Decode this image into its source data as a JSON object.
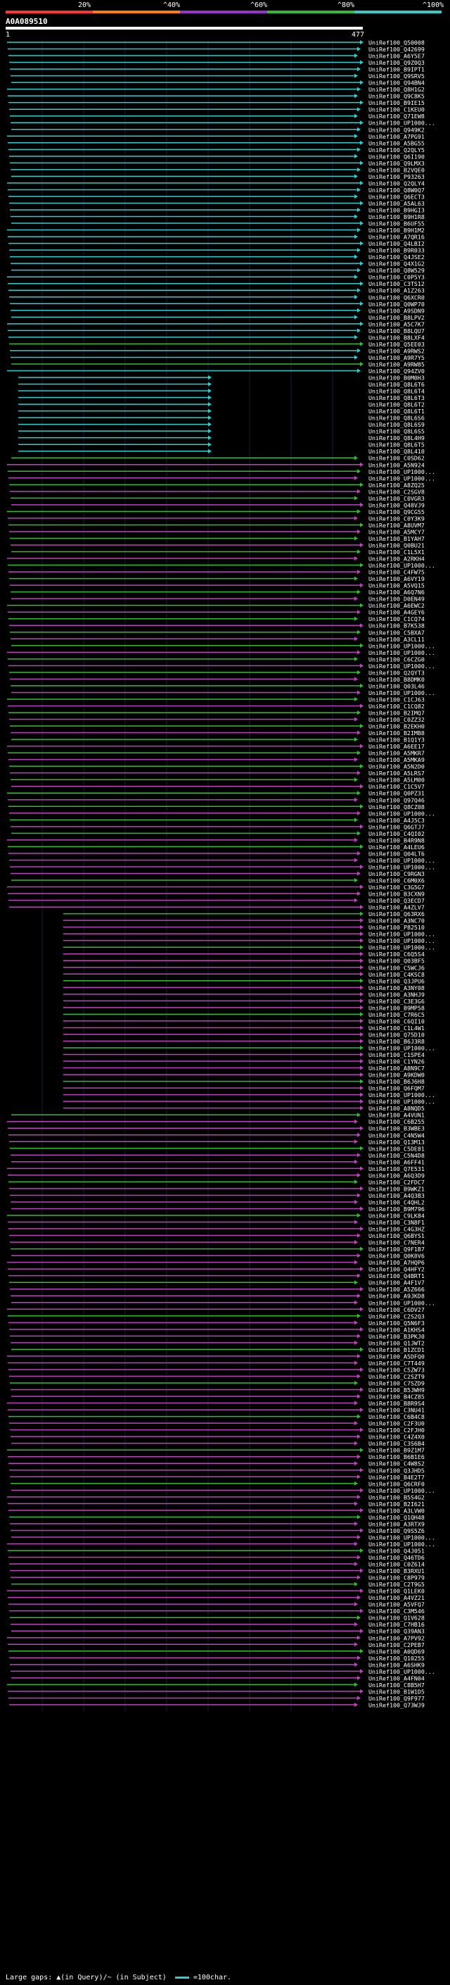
{
  "legend": [
    {
      "label": "20%",
      "color": "#ff3333"
    },
    {
      "label": "^40%",
      "color": "#ff8000"
    },
    {
      "label": "^60%",
      "color": "#9933cc"
    },
    {
      "label": "^80%",
      "color": "#33bb33"
    },
    {
      "label": "^100%",
      "color": "#33cccc"
    }
  ],
  "query": {
    "name": "A0A089510",
    "start": "1",
    "end": "477"
  },
  "colors": {
    "cyan": "#33cccc",
    "green": "#33bb33",
    "magenta": "#bb44bb"
  },
  "hits": [
    "UniRef100_Q50008",
    "UniRef100_Q42699",
    "UniRef100_A6Y5E7",
    "UniRef100_Q9Z0Q3",
    "UniRef100_B9IPT1",
    "UniRef100_Q9SRV5",
    "UniRef100_Q94BN4",
    "UniRef100_Q8H1G2",
    "UniRef100_Q9C8K5",
    "UniRef100_B9IE15",
    "UniRef100_C1KEU0",
    "UniRef100_Q71EW8",
    "UniRef100_UP1000...",
    "UniRef100_Q949K2",
    "UniRef100_A7PG91",
    "UniRef100_A5BG55",
    "UniRef100_Q2QLY5",
    "UniRef100_Q6I190",
    "UniRef100_Q9LMX3",
    "UniRef100_B2VQE0",
    "UniRef100_P93263",
    "UniRef100_Q2QLY4",
    "UniRef100_Q8W0Q7",
    "UniRef100_Q6ECT3",
    "UniRef100_A5AL63",
    "UniRef100_B9HGI3",
    "UniRef100_B9H1R8",
    "UniRef100_B6UF55",
    "UniRef100_B9H1M2",
    "UniRef100_A7QR16",
    "UniRef100_Q4LBI2",
    "UniRef100_B9R033",
    "UniRef100_Q4JSE2",
    "UniRef100_Q4X1G2",
    "UniRef100_Q8W529",
    "UniRef100_C0P5Y3",
    "UniRef100_C3TS12",
    "UniRef100_A1Z263",
    "UniRef100_Q6XCR0",
    "UniRef100_Q0WP70",
    "UniRef100_A9SDN9",
    "UniRef100_B8LPV2",
    "UniRef100_A5C7K7",
    "UniRef100_B8LQU7",
    "UniRef100_B8LXF4",
    "UniRef100_Q5EE03",
    "UniRef100_A9RWS2",
    "UniRef100_A9R7Y5",
    "UniRef100_A9RW85",
    "UniRef100_Q94ZV0",
    "UniRef100_B0M0H3",
    "UniRef100_Q8L6T6",
    "UniRef100_Q8L6T4",
    "UniRef100_Q8L6T3",
    "UniRef100_Q8L6T2",
    "UniRef100_Q8L6T1",
    "UniRef100_Q8L6S6",
    "UniRef100_Q8L6S9",
    "UniRef100_Q8L6S5",
    "UniRef100_Q8L4H9",
    "UniRef100_Q8L6T5",
    "UniRef100_Q8L410",
    "UniRef100_C0SD62",
    "UniRef100_A5N924",
    "UniRef100_UP1000...",
    "UniRef100_UP1000...",
    "UniRef100_A8ZQ25",
    "UniRef100_C2SGV8",
    "UniRef100_C0VGR3",
    "UniRef100_Q48VJ9",
    "UniRef100_Q9CG55",
    "UniRef100_C0Y3K9",
    "UniRef100_A8UVM7",
    "UniRef100_A5MCY7",
    "UniRef100_B1YAH7",
    "UniRef100_Q0BU21",
    "UniRef100_C1L5X1",
    "UniRef100_A2RKH4",
    "UniRef100_UP1000...",
    "UniRef100_C4FW75",
    "UniRef100_A6VY19",
    "UniRef100_A5VQ15",
    "UniRef100_A6Q7N6",
    "UniRef100_D0EN49",
    "UniRef100_A6EWC2",
    "UniRef100_A4GEY6",
    "UniRef100_C1CQ74",
    "UniRef100_B7K538",
    "UniRef100_C5BXA7",
    "UniRef100_A3CL11",
    "UniRef100_UP1000...",
    "UniRef100_UP1000...",
    "UniRef100_C6CZG0",
    "UniRef100_UP1000...",
    "UniRef100_Q2QYT3",
    "UniRef100_B8DMK0",
    "UniRef100_Q03L46",
    "UniRef100_UP1000...",
    "UniRef100_C1CJ63",
    "UniRef100_C1CQ82",
    "UniRef100_B2IMQ7",
    "UniRef100_C0ZZ32",
    "UniRef100_B2EKH0",
    "UniRef100_B2IMB8",
    "UniRef100_B1Q1Y3",
    "UniRef100_A6EE17",
    "UniRef100_A5MKR7",
    "UniRef100_A5MKA9",
    "UniRef100_A5N2D0",
    "UniRef100_A5LRS7",
    "UniRef100_A5LM00",
    "UniRef100_C1C5V7",
    "UniRef100_Q0PZ31",
    "UniRef100_Q97Q46",
    "UniRef100_Q8CZ08",
    "UniRef100_UP1000...",
    "UniRef100_A4J5C3",
    "UniRef100_Q6GTJ7",
    "UniRef100_C4QI02",
    "UniRef100_B4R9N8",
    "UniRef100_A4LEU6",
    "UniRef100_Q04LT6",
    "UniRef100_UP1000...",
    "UniRef100_UP1000...",
    "UniRef100_C9RGN3",
    "UniRef100_C6M0X6",
    "UniRef100_C3G5G7",
    "UniRef100_B3CXN9",
    "UniRef100_Q3ECD7",
    "UniRef100_A4ZLV7",
    "UniRef100_Q63RX6",
    "UniRef100_A3NC70",
    "UniRef100_P82510",
    "UniRef100_UP1000...",
    "UniRef100_UP1000...",
    "UniRef100_UP1000...",
    "UniRef100_C6Q5S4",
    "UniRef100_Q03BF5",
    "UniRef100_C5WCJ6",
    "UniRef100_C4KSC8",
    "UniRef100_Q3JPU6",
    "UniRef100_A3NY08",
    "UniRef100_A3NHJ9",
    "UniRef100_C3E3G6",
    "UniRef100_B9MP58",
    "UniRef100_C7R6C5",
    "UniRef100_C6QI10",
    "UniRef100_C1L4W1",
    "UniRef100_Q75D10",
    "UniRef100_B6J3R8",
    "UniRef100_UP1000...",
    "UniRef100_C1SPE4",
    "UniRef100_C1YN26",
    "UniRef100_A8N9C7",
    "UniRef100_A9KDW0",
    "UniRef100_B6J6H8",
    "UniRef100_Q6FQM7",
    "UniRef100_UP1000...",
    "UniRef100_UP1000...",
    "UniRef100_A8NQD5",
    "UniRef100_A4VUN1",
    "UniRef100_C6B255",
    "UniRef100_B3WBE3",
    "UniRef100_C4N5W4",
    "UniRef100_Q13M13",
    "UniRef100_C5DE81",
    "UniRef100_C5N4D8",
    "UniRef100_A6FF41",
    "UniRef100_Q7E531",
    "UniRef100_A6Q3D9",
    "UniRef100_C2FDC7",
    "UniRef100_B9WKZ1",
    "UniRef100_A4Q3B3",
    "UniRef100_C4QHL2",
    "UniRef100_B9M796",
    "UniRef100_C9LK84",
    "UniRef100_C3N8F1",
    "UniRef100_C4G3HZ",
    "UniRef100_Q6BYS1",
    "UniRef100_C7NER4",
    "UniRef100_Q9F1B7",
    "UniRef100_Q0K0V6",
    "UniRef100_A7HQP6",
    "UniRef100_Q4HFY2",
    "UniRef100_Q4BRT1",
    "UniRef100_A4F1V7",
    "UniRef100_A5Z666",
    "UniRef100_A9JKD8",
    "UniRef100_UP1000...",
    "UniRef100_C6DV27",
    "UniRef100_C2S2Q3",
    "UniRef100_Q5N6F3",
    "UniRef100_A1KHS4",
    "UniRef100_B3PKJ0",
    "UniRef100_Q1JWT2",
    "UniRef100_B1ZCD1",
    "UniRef100_A5DFQ0",
    "UniRef100_C7T449",
    "UniRef100_C5ZW73",
    "UniRef100_C2SZT9",
    "UniRef100_C7SZD9",
    "UniRef100_B5JWH9",
    "UniRef100_B4CZ85",
    "UniRef100_B8R9S4",
    "UniRef100_C3NU41",
    "UniRef100_C6B4C8",
    "UniRef100_C2F3U0",
    "UniRef100_C2FJH0",
    "UniRef100_C4Z4X0",
    "UniRef100_C3S6B4",
    "UniRef100_B9Z1M7",
    "UniRef100_B6B1E6",
    "UniRef100_C4W8S2",
    "UniRef100_Q3JHD5",
    "UniRef100_B4E2T7",
    "UniRef100_Q6CRF0",
    "UniRef100_UP1000...",
    "UniRef100_B5S4G2",
    "UniRef100_B2I621",
    "UniRef100_A3LVW0",
    "UniRef100_Q1QH48",
    "UniRef100_A3RTX9",
    "UniRef100_Q9S5Z6",
    "UniRef100_UP1000...",
    "UniRef100_UP1000...",
    "UniRef100_Q4J051",
    "UniRef100_Q46TD6",
    "UniRef100_C0Z614",
    "UniRef100_B3RXU1",
    "UniRef100_C8P979",
    "UniRef100_C2T9G5",
    "UniRef100_Q1LEK0",
    "UniRef100_A4VZ21",
    "UniRef100_A5VFQ7",
    "UniRef100_C3M546",
    "UniRef100_Q1V628",
    "UniRef100_C7HB16",
    "UniRef100_Q39AN3",
    "UniRef100_A7PV92",
    "UniRef100_C2PEB7",
    "UniRef100_A0QD69",
    "UniRef100_Q10255",
    "UniRef100_A6SHK9",
    "UniRef100_UP1000...",
    "UniRef100_A4FN04",
    "UniRef100_C8B5H7",
    "UniRef100_B1W1D5",
    "UniRef100_Q9F977",
    "UniRef100_Q73WJ9"
  ],
  "footer": {
    "text": "Large gaps: ▲(in Query)/~ (in Subject)",
    "scale_label": "=100char."
  }
}
